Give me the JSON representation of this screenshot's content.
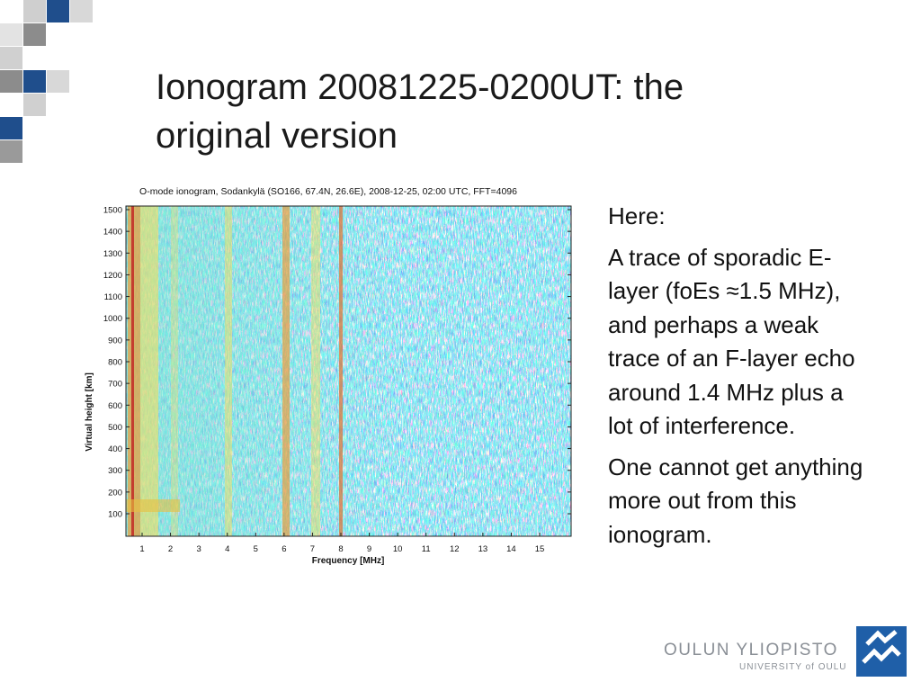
{
  "slide": {
    "title": "Ionogram 20081225-0200UT: the original version",
    "figure": {
      "title": "O-mode ionogram, Sodankylä (SO166, 67.4N, 26.6E), 2008-12-25, 02:00 UTC, FFT=4096",
      "y_label": "Virtual height [km]",
      "x_label": "Frequency [MHz]",
      "yticks": [
        100,
        200,
        300,
        400,
        500,
        600,
        700,
        800,
        900,
        1000,
        1100,
        1200,
        1300,
        1400,
        1500
      ],
      "xticks": [
        1,
        2,
        3,
        4,
        5,
        6,
        7,
        8,
        9,
        10,
        11,
        12,
        13,
        14,
        15
      ]
    },
    "body": [
      "Here:",
      "A trace of sporadic E-layer (foEs ≈1.5 MHz), and perhaps a weak trace of an F-layer echo around 1.4 MHz plus a lot of interference.",
      "One cannot get anything more out from this ionogram."
    ],
    "logo": {
      "name": "OULUN YLIOPISTO",
      "subname": "UNIVERSITY of OULU"
    }
  }
}
